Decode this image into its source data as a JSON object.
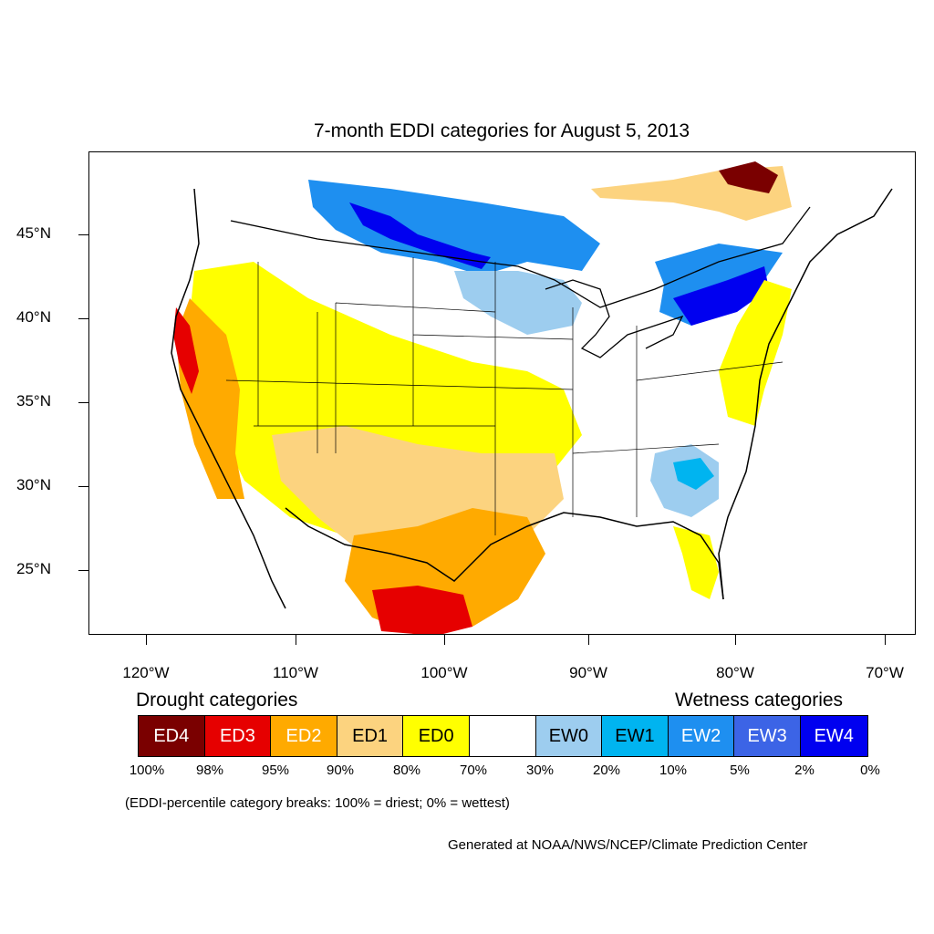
{
  "title": "7-month EDDI categories for August 5, 2013",
  "lat_labels": [
    "45°N",
    "40°N",
    "35°N",
    "30°N",
    "25°N"
  ],
  "lon_labels": [
    "120°W",
    "110°W",
    "100°W",
    "90°W",
    "80°W",
    "70°W"
  ],
  "drought_heading": "Drought categories",
  "wetness_heading": "Wetness categories",
  "categories": [
    {
      "label": "ED4",
      "color": "#7a0000",
      "text_color": "#ffffff"
    },
    {
      "label": "ED3",
      "color": "#e60000",
      "text_color": "#ffffff"
    },
    {
      "label": "ED2",
      "color": "#ffaa00",
      "text_color": "#ffffff"
    },
    {
      "label": "ED1",
      "color": "#fcd37f",
      "text_color": "#000000"
    },
    {
      "label": "ED0",
      "color": "#ffff00",
      "text_color": "#000000"
    },
    {
      "label": "",
      "color": "#ffffff",
      "text_color": "#000000"
    },
    {
      "label": "EW0",
      "color": "#9dcdef",
      "text_color": "#000000"
    },
    {
      "label": "EW1",
      "color": "#00b4f0",
      "text_color": "#000000"
    },
    {
      "label": "EW2",
      "color": "#1e8ff0",
      "text_color": "#ffffff"
    },
    {
      "label": "EW3",
      "color": "#3c64e6",
      "text_color": "#ffffff"
    },
    {
      "label": "EW4",
      "color": "#0000f0",
      "text_color": "#ffffff"
    }
  ],
  "percentiles": [
    "100%",
    "98%",
    "95%",
    "90%",
    "80%",
    "70%",
    "30%",
    "20%",
    "10%",
    "5%",
    "2%",
    "0%"
  ],
  "note": "(EDDI-percentile category breaks: 100% = driest; 0% = wettest)",
  "credit": "Generated at NOAA/NWS/NCEP/Climate Prediction Center"
}
